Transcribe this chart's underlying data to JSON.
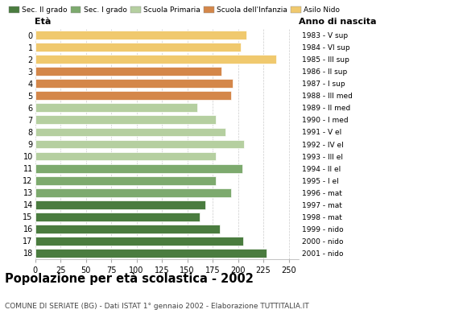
{
  "ages": [
    18,
    17,
    16,
    15,
    14,
    13,
    12,
    11,
    10,
    9,
    8,
    7,
    6,
    5,
    4,
    3,
    2,
    1,
    0
  ],
  "values": [
    228,
    205,
    182,
    162,
    168,
    193,
    178,
    204,
    178,
    206,
    188,
    178,
    160,
    193,
    195,
    184,
    238,
    203,
    208
  ],
  "right_labels": [
    "1983 - V sup",
    "1984 - VI sup",
    "1985 - III sup",
    "1986 - II sup",
    "1987 - I sup",
    "1988 - III med",
    "1989 - II med",
    "1990 - I med",
    "1991 - V el",
    "1992 - IV el",
    "1993 - III el",
    "1994 - II el",
    "1995 - I el",
    "1996 - mat",
    "1997 - mat",
    "1998 - mat",
    "1999 - nido",
    "2000 - nido",
    "2001 - nido"
  ],
  "colors": [
    "#4a7c3f",
    "#4a7c3f",
    "#4a7c3f",
    "#4a7c3f",
    "#4a7c3f",
    "#7daa6e",
    "#7daa6e",
    "#7daa6e",
    "#b5cfa0",
    "#b5cfa0",
    "#b5cfa0",
    "#b5cfa0",
    "#b5cfa0",
    "#d4874a",
    "#d4874a",
    "#d4874a",
    "#f0c96e",
    "#f0c96e",
    "#f0c96e"
  ],
  "legend_labels": [
    "Sec. II grado",
    "Sec. I grado",
    "Scuola Primaria",
    "Scuola dell'Infanzia",
    "Asilo Nido"
  ],
  "legend_colors": [
    "#4a7c3f",
    "#7daa6e",
    "#b5cfa0",
    "#d4874a",
    "#f0c96e"
  ],
  "title": "Popolazione per età scolastica - 2002",
  "subtitle": "COMUNE DI SERIATE (BG) - Dati ISTAT 1° gennaio 2002 - Elaborazione TUTTITALIA.IT",
  "eta_label": "Età",
  "anno_label": "Anno di nascita",
  "xlim": [
    0,
    260
  ],
  "xticks": [
    0,
    25,
    50,
    75,
    100,
    125,
    150,
    175,
    200,
    225,
    250
  ],
  "bg_color": "#ffffff",
  "grid_color": "#cccccc",
  "bar_height": 0.72
}
